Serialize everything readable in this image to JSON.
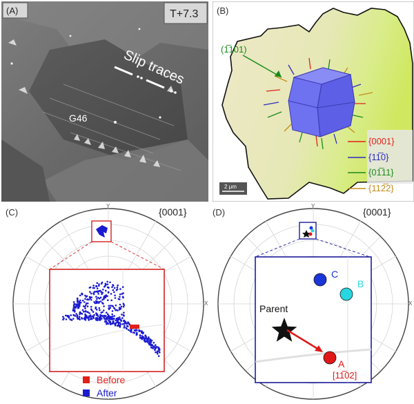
{
  "panelA": {
    "label": "(A)",
    "time_badge": "T+7.3",
    "slip_label": "Slip traces",
    "grain_label": "G46"
  },
  "panelB": {
    "label": "(B)",
    "pointer_label": "(1̅101)",
    "scalebar": "2 μm",
    "legend": [
      {
        "text": "{0001}",
        "color": "#e0201a"
      },
      {
        "text": "{11̅0}",
        "color": "#2b2bc0"
      },
      {
        "text": "{01̅11}",
        "color": "#1a8a1a"
      },
      {
        "text": "{112̅2}",
        "color": "#c58a1a"
      }
    ]
  },
  "panelC": {
    "label": "(C)",
    "plane": "{0001}",
    "axis_y": "Y",
    "axis_x": "X",
    "legend": [
      {
        "text": "Before",
        "color": "#e0201a"
      },
      {
        "text": "After",
        "color": "#1a1ad0"
      }
    ]
  },
  "panelD": {
    "label": "(D)",
    "plane": "{0001}",
    "axis_y": "Y",
    "axis_x": "X",
    "points": [
      {
        "name": "C",
        "color": "#1a35d8"
      },
      {
        "name": "B",
        "color": "#27d6e0"
      },
      {
        "name": "A",
        "color": "#e01818"
      }
    ],
    "parent_label": "Parent",
    "a_index": "[11̅02]"
  }
}
